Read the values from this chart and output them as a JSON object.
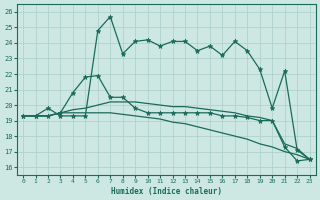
{
  "xlabel": "Humidex (Indice chaleur)",
  "xlim": [
    -0.5,
    23.5
  ],
  "ylim": [
    15.5,
    26.5
  ],
  "yticks": [
    16,
    17,
    18,
    19,
    20,
    21,
    22,
    23,
    24,
    25,
    26
  ],
  "xticks": [
    0,
    1,
    2,
    3,
    4,
    5,
    6,
    7,
    8,
    9,
    10,
    11,
    12,
    13,
    14,
    15,
    16,
    17,
    18,
    19,
    20,
    21,
    22,
    23
  ],
  "bg_color": "#cde8e2",
  "grid_color": "#aacfc8",
  "line_color": "#1a6b5a",
  "line1_x": [
    0,
    1,
    2,
    3,
    4,
    5,
    6,
    7,
    8,
    9,
    10,
    11,
    12,
    13,
    14,
    15,
    16,
    17,
    18,
    19,
    20,
    21,
    22,
    23
  ],
  "line1_y": [
    19.3,
    19.3,
    19.8,
    19.3,
    19.3,
    19.3,
    24.8,
    25.7,
    23.3,
    24.1,
    24.2,
    23.8,
    24.1,
    24.1,
    23.5,
    23.8,
    23.2,
    24.1,
    23.5,
    22.3,
    19.8,
    22.2,
    17.1,
    16.5
  ],
  "line2_x": [
    0,
    1,
    2,
    3,
    4,
    5,
    6,
    7,
    8,
    9,
    10,
    11,
    12,
    13,
    14,
    15,
    16,
    17,
    18,
    19,
    20,
    21,
    22,
    23
  ],
  "line2_y": [
    19.3,
    19.3,
    19.3,
    19.5,
    20.8,
    21.8,
    21.9,
    20.5,
    20.5,
    19.8,
    19.5,
    19.5,
    19.5,
    19.5,
    19.5,
    19.5,
    19.3,
    19.3,
    19.2,
    19.0,
    19.0,
    17.3,
    16.4,
    16.5
  ],
  "line3_x": [
    0,
    1,
    2,
    3,
    4,
    5,
    6,
    7,
    8,
    9,
    10,
    11,
    12,
    13,
    14,
    15,
    16,
    17,
    18,
    19,
    20,
    21,
    22,
    23
  ],
  "line3_y": [
    19.3,
    19.3,
    19.3,
    19.5,
    19.7,
    19.8,
    20.0,
    20.2,
    20.2,
    20.2,
    20.1,
    20.0,
    19.9,
    19.9,
    19.8,
    19.7,
    19.6,
    19.5,
    19.3,
    19.2,
    19.0,
    17.5,
    17.2,
    16.5
  ],
  "line4_x": [
    0,
    1,
    2,
    3,
    4,
    5,
    6,
    7,
    8,
    9,
    10,
    11,
    12,
    13,
    14,
    15,
    16,
    17,
    18,
    19,
    20,
    21,
    22,
    23
  ],
  "line4_y": [
    19.3,
    19.3,
    19.3,
    19.5,
    19.5,
    19.5,
    19.5,
    19.5,
    19.4,
    19.3,
    19.2,
    19.1,
    18.9,
    18.8,
    18.6,
    18.4,
    18.2,
    18.0,
    17.8,
    17.5,
    17.3,
    17.0,
    16.8,
    16.5
  ]
}
